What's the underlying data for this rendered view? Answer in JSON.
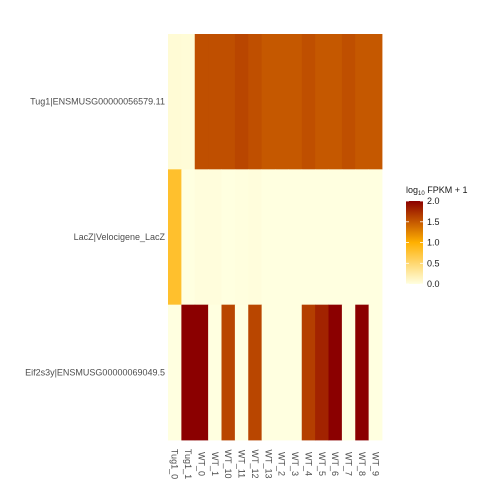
{
  "chart_data": {
    "type": "heatmap",
    "columns": [
      "Tug1_0",
      "Tug1_1",
      "WT_0",
      "WT_1",
      "WT_10",
      "WT_11",
      "WT_12",
      "WT_13",
      "WT_2",
      "WT_3",
      "WT_4",
      "WT_5",
      "WT_6",
      "WT_7",
      "WT_8",
      "WT_9"
    ],
    "rows": [
      "Tug1|ENSMUSG00000056579.11",
      "LacZ|Velocigene_LacZ",
      "Eif2s3y|ENSMUSG00000069049.5"
    ],
    "values": [
      [
        0.05,
        0.04,
        1.55,
        1.55,
        1.55,
        1.6,
        1.55,
        1.5,
        1.5,
        1.5,
        1.55,
        1.5,
        1.5,
        1.55,
        1.5,
        1.5
      ],
      [
        0.8,
        0.0,
        0.02,
        0.02,
        0.0,
        0.01,
        0.02,
        0.0,
        0.0,
        0.0,
        0.0,
        0.0,
        0.0,
        0.0,
        0.0,
        0.0
      ],
      [
        0.0,
        2.0,
        2.0,
        0.0,
        1.6,
        0.0,
        1.6,
        0.0,
        0.0,
        0.0,
        1.65,
        1.8,
        2.0,
        0.0,
        2.0,
        0.0
      ]
    ],
    "legend": {
      "title_prefix": "log",
      "title_sub": "10",
      "title_suffix": " FPKM + 1",
      "ticks": [
        "2.0",
        "1.5",
        "1.0",
        "0.5",
        "0.0"
      ],
      "tick_values": [
        2.0,
        1.5,
        1.0,
        0.5,
        0.0
      ],
      "range": [
        0,
        2
      ],
      "colors": [
        "#FFFFE0",
        "#FFB000",
        "#8B0000"
      ]
    }
  }
}
